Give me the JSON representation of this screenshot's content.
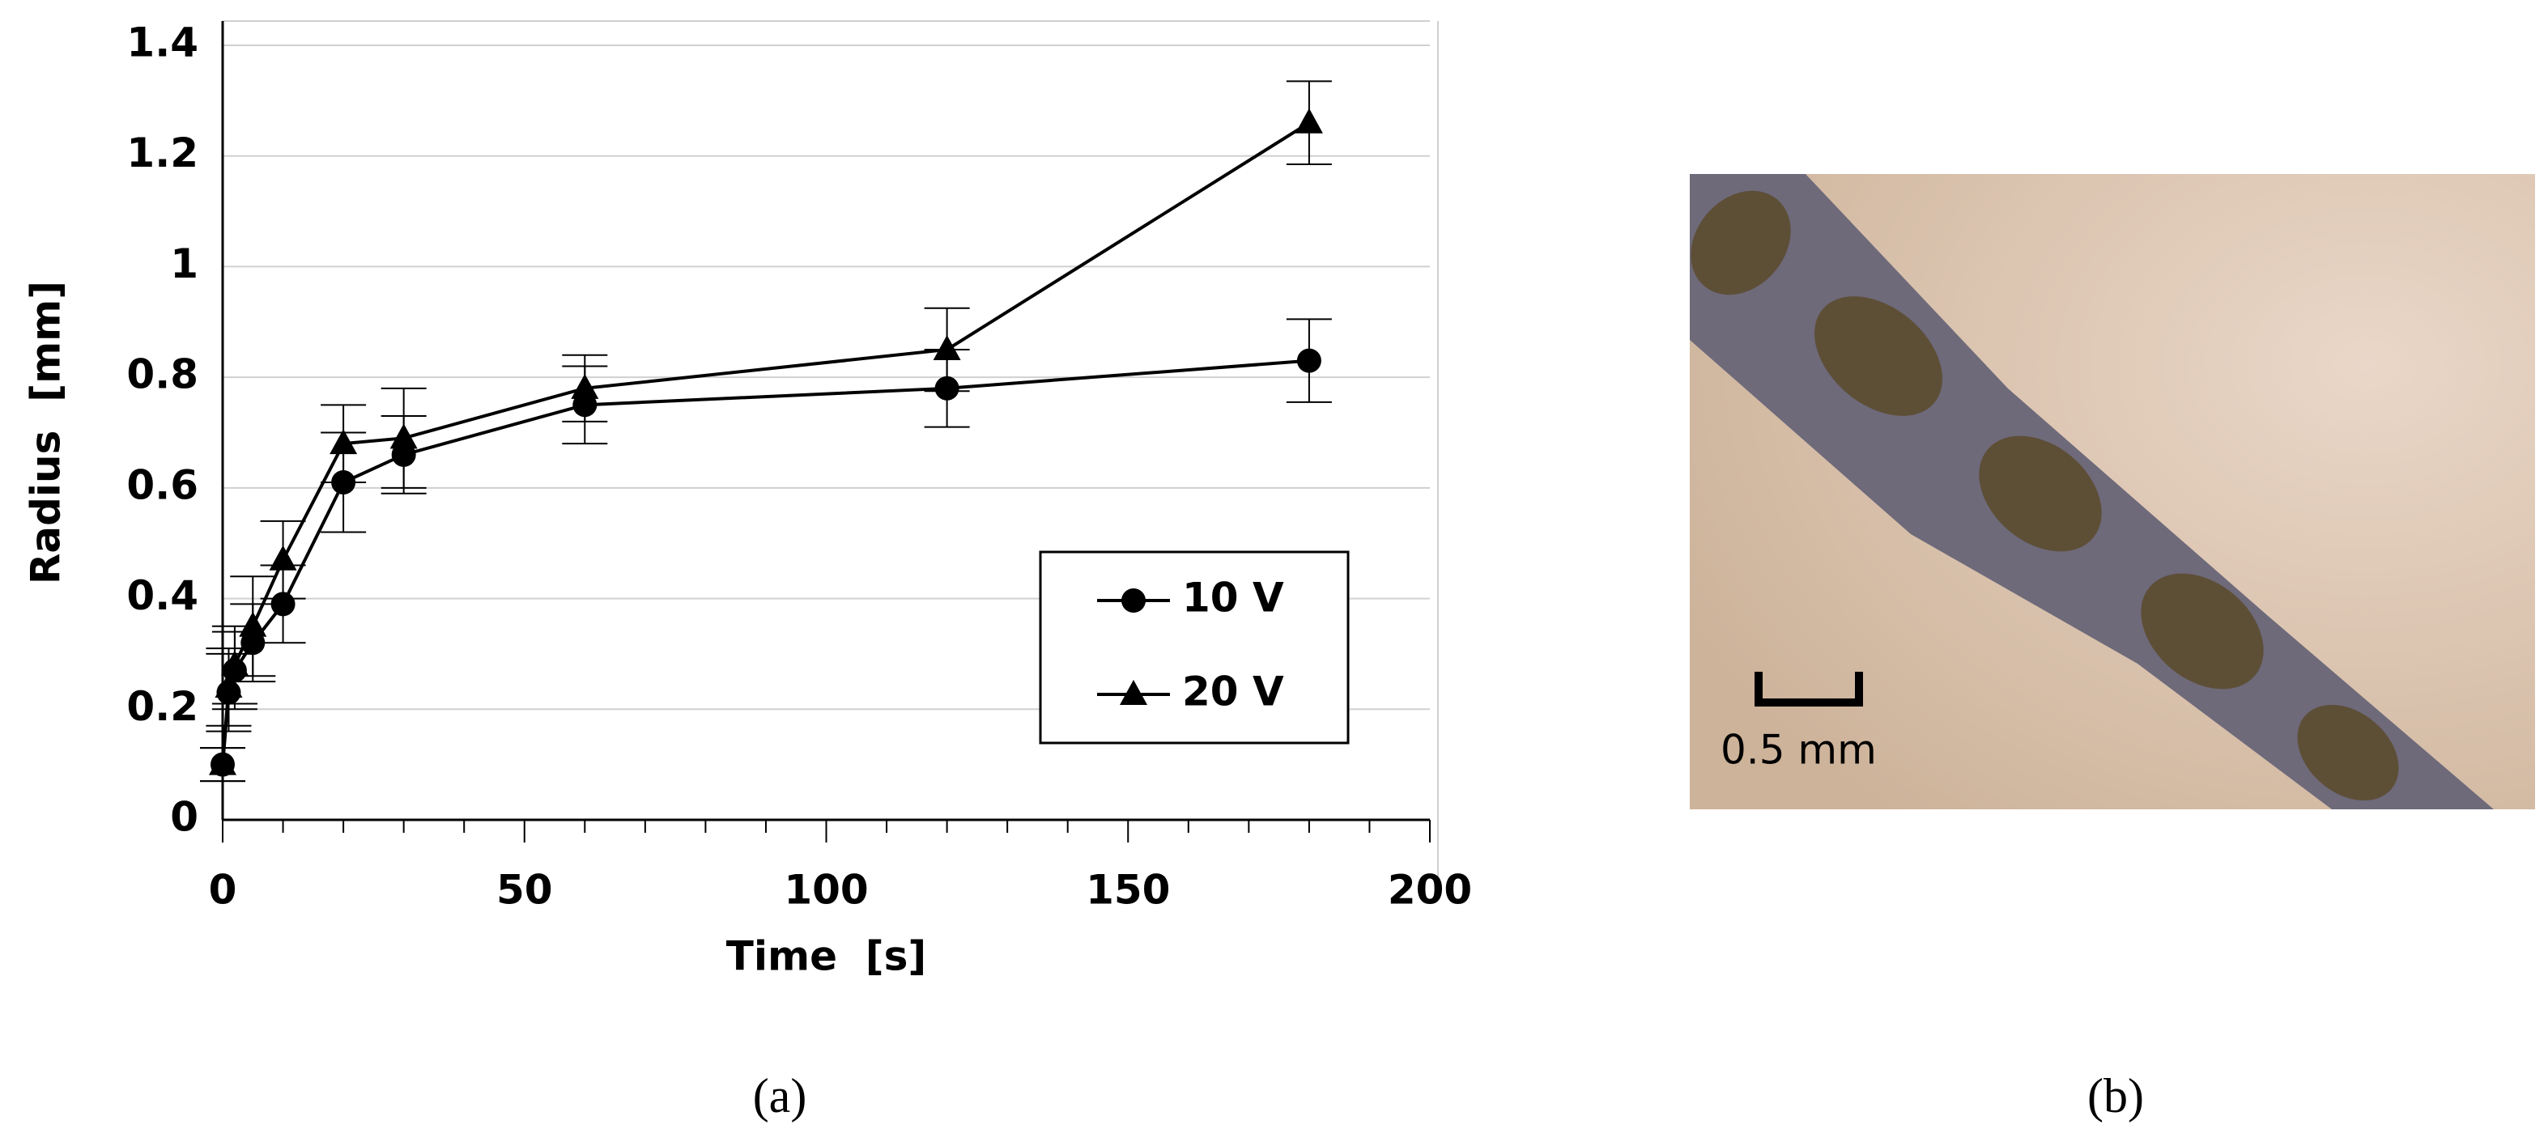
{
  "chart_data": {
    "type": "line",
    "xlabel": "Time  [s]",
    "ylabel": "Radius  [mm]",
    "xlim": [
      0,
      200
    ],
    "xticks": [
      0,
      50,
      100,
      150,
      200
    ],
    "xminorticks": [
      10,
      20,
      30,
      40,
      60,
      70,
      80,
      90,
      110,
      120,
      130,
      140,
      160,
      170,
      180,
      190
    ],
    "ylim": [
      0,
      1.4
    ],
    "yticks": [
      0,
      0.2,
      0.4,
      0.6,
      0.8,
      1,
      1.2,
      1.4
    ],
    "grid": true,
    "legend": "lower right",
    "x": [
      0,
      1,
      2,
      5,
      10,
      20,
      30,
      60,
      120,
      180
    ],
    "series": [
      {
        "name": "10 V",
        "color": "#000000",
        "marker": "circle",
        "values": [
          0.1,
          0.23,
          0.27,
          0.32,
          0.39,
          0.61,
          0.66,
          0.75,
          0.78,
          0.83
        ],
        "errors": [
          0.03,
          0.07,
          0.07,
          0.07,
          0.07,
          0.09,
          0.07,
          0.07,
          0.07,
          0.075
        ]
      },
      {
        "name": "20 V",
        "color": "#000000",
        "marker": "triangle",
        "values": [
          0.1,
          0.24,
          0.28,
          0.35,
          0.47,
          0.68,
          0.69,
          0.78,
          0.85,
          1.26
        ],
        "errors": [
          0.03,
          0.07,
          0.07,
          0.09,
          0.07,
          0.07,
          0.09,
          0.06,
          0.075,
          0.075
        ]
      }
    ]
  },
  "figure": {
    "caption_a": "(a)",
    "caption_b": "(b)",
    "scale_bar": "0.5 mm"
  }
}
